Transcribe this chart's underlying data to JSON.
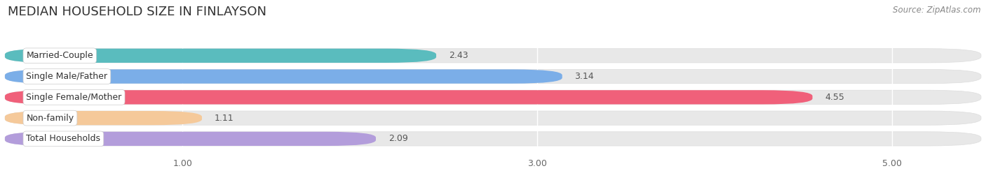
{
  "title": "MEDIAN HOUSEHOLD SIZE IN FINLAYSON",
  "source": "Source: ZipAtlas.com",
  "categories": [
    "Married-Couple",
    "Single Male/Father",
    "Single Female/Mother",
    "Non-family",
    "Total Households"
  ],
  "values": [
    2.43,
    3.14,
    4.55,
    1.11,
    2.09
  ],
  "bar_colors": [
    "#5abcbe",
    "#7baee8",
    "#f0607a",
    "#f5c99a",
    "#b39ddb"
  ],
  "xlim_data": [
    0.0,
    5.5
  ],
  "x_axis_start": 0.0,
  "xticks": [
    1.0,
    3.0,
    5.0
  ],
  "xtick_labels": [
    "1.00",
    "3.00",
    "5.00"
  ],
  "background_color": "#ffffff",
  "bar_bg_color": "#e8e8e8",
  "title_fontsize": 13,
  "label_fontsize": 9,
  "value_fontsize": 9,
  "source_fontsize": 8.5,
  "bar_height": 0.68,
  "bar_gap": 0.32
}
